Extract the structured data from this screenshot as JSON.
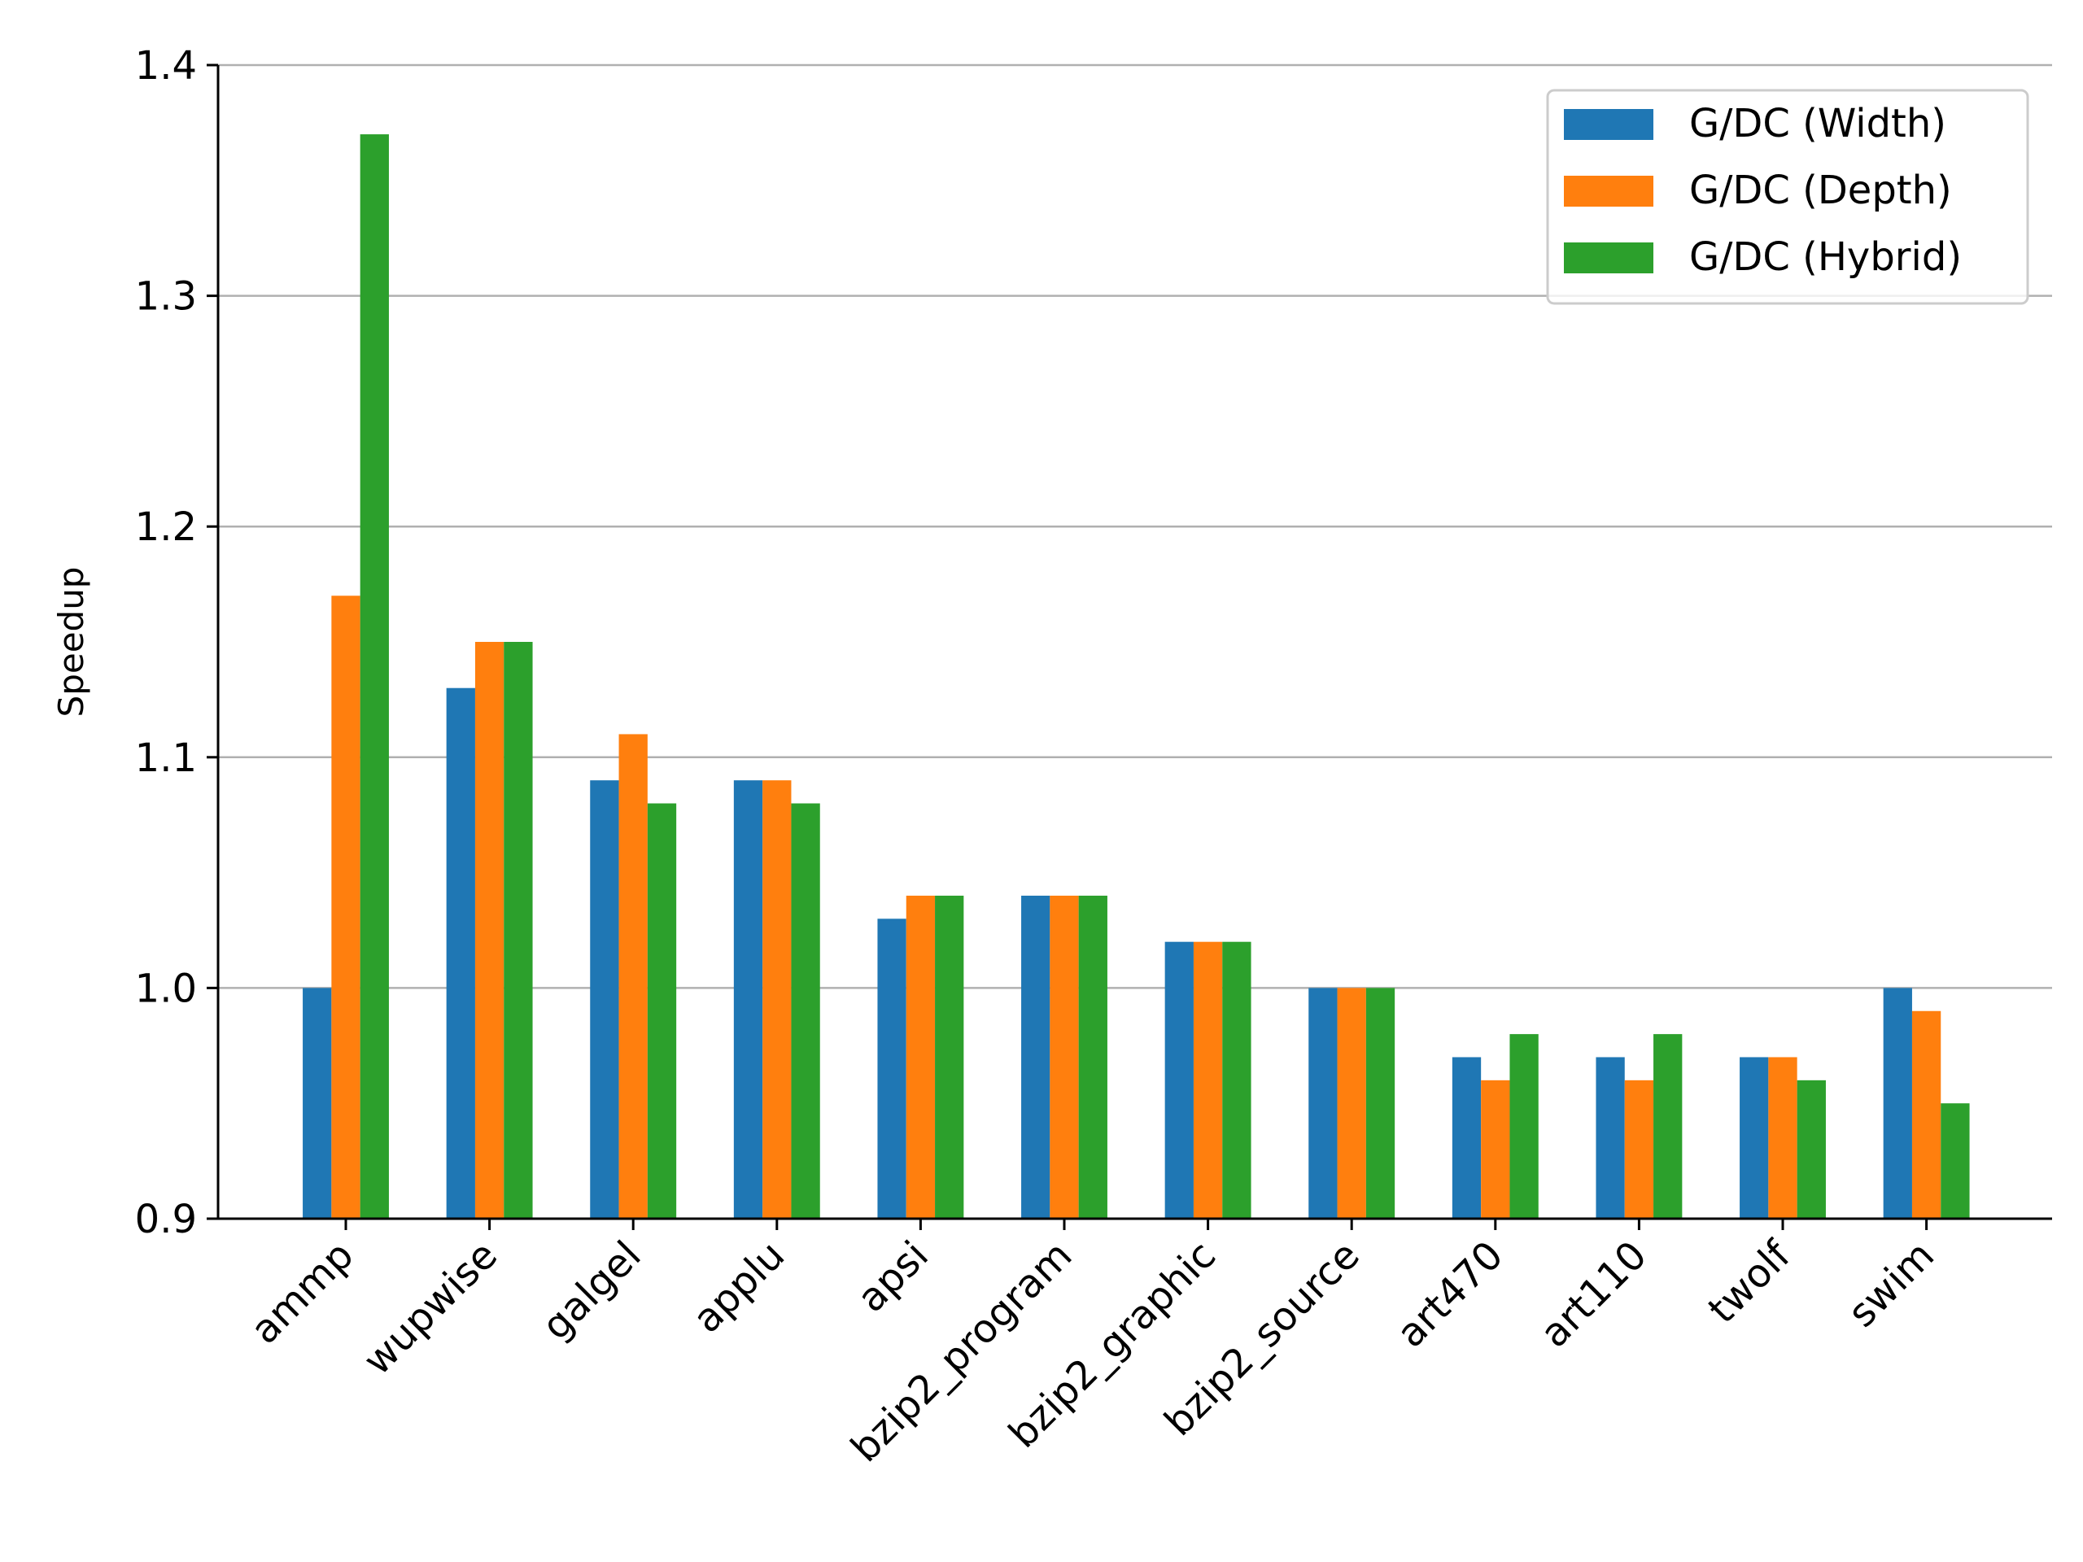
{
  "chart_data": {
    "type": "bar",
    "title": "",
    "xlabel": "",
    "ylabel": "Speedup",
    "ylim": [
      0.9,
      1.4
    ],
    "yticks": [
      "0.9",
      "1.0",
      "1.1",
      "1.2",
      "1.3",
      "1.4"
    ],
    "grid": "horizontal",
    "legend_position": "top-right",
    "categories": [
      "ammp",
      "wupwise",
      "galgel",
      "applu",
      "apsi",
      "bzip2_program",
      "bzip2_graphic",
      "bzip2_source",
      "art470",
      "art110",
      "twolf",
      "swim"
    ],
    "series": [
      {
        "name": "G/DC (Width)",
        "color": "#1f77b4",
        "values": [
          1.0,
          1.13,
          1.09,
          1.09,
          1.03,
          1.04,
          1.02,
          1.0,
          0.97,
          0.97,
          0.97,
          1.0
        ]
      },
      {
        "name": "G/DC (Depth)",
        "color": "#ff7f0e",
        "values": [
          1.17,
          1.15,
          1.11,
          1.09,
          1.04,
          1.04,
          1.02,
          1.0,
          0.96,
          0.96,
          0.97,
          0.99
        ]
      },
      {
        "name": "G/DC (Hybrid)",
        "color": "#2ca02c",
        "values": [
          1.37,
          1.15,
          1.08,
          1.08,
          1.04,
          1.04,
          1.02,
          1.0,
          0.98,
          0.98,
          0.96,
          0.95
        ]
      }
    ]
  }
}
